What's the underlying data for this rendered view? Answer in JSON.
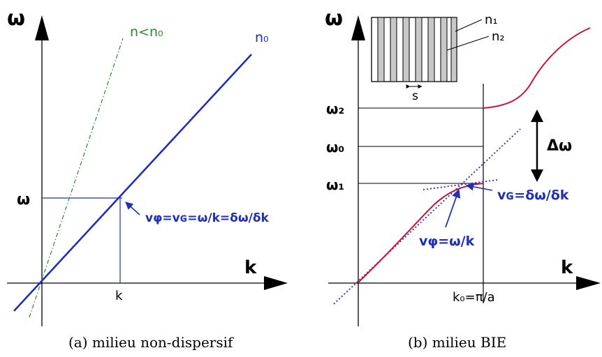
{
  "panel_a": {
    "y_axis_label": "ω",
    "x_axis_label": "k",
    "omega_tick": "ω",
    "k_tick": "k",
    "line_n0_label": "n₀",
    "line_n_label": "n<n₀",
    "equation": "vφ=vɢ=ω/k=δω/δk",
    "caption": "(a) milieu non-dispersif"
  },
  "panel_b": {
    "y_axis_label": "ω",
    "x_axis_label": "k",
    "omega2": "ω₂",
    "omega0": "ω₀",
    "omega1": "ω₁",
    "delta_omega": "Δω",
    "k0_label": "k₀=π/a",
    "vg_equation": "vɢ=δω/δk",
    "vphi_equation": "vφ=ω/k",
    "inset_n1": "n₁",
    "inset_n2": "n₂",
    "inset_s": "s",
    "caption": "(b) milieu BIE"
  },
  "colors": {
    "axis": "#000000",
    "blue_line": "#1f2fb8",
    "green_line": "#2a8a2a",
    "red_curve": "#c8143c",
    "dotted": "#3a3aa8",
    "inset_gray": "#c8c8c8"
  }
}
